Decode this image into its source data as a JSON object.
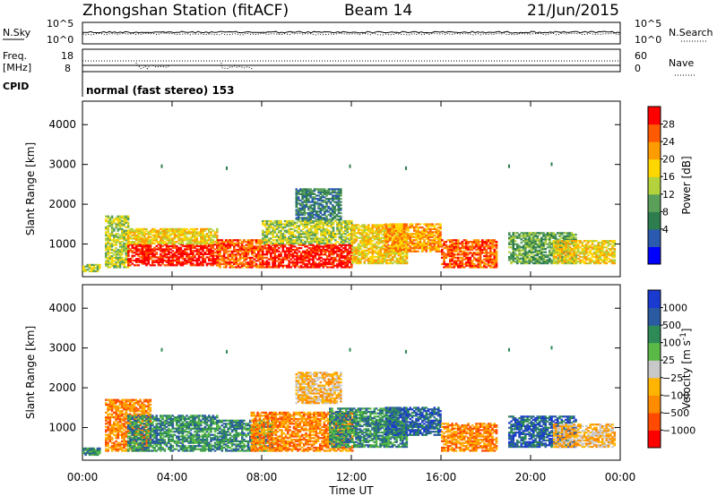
{
  "header": {
    "title": "Zhongshan Station (fitACF)",
    "beam": "Beam 14",
    "date": "21/Jun/2015"
  },
  "status_panels": {
    "nsky_label": "N.Sky",
    "nsky_ticks": [
      "10^5",
      "10^0"
    ],
    "nsearch_label": "N.Search",
    "nsearch_ticks": [
      "10^5",
      "10^0"
    ],
    "freq_label_1": "Freq.",
    "freq_label_2": "[MHz]",
    "freq_ticks": [
      "18",
      "8"
    ],
    "nave_label": "Nave",
    "nave_ticks": [
      "60",
      "0"
    ],
    "cpid_label": "CPID",
    "cpid_text": "normal (fast stereo) 153"
  },
  "chart_data": [
    {
      "type": "heatmap",
      "name": "power",
      "ylabel": "Slant Range [km]",
      "yticks": [
        "4000",
        "3000",
        "2000",
        "1000"
      ],
      "ylim": [
        180,
        4590
      ],
      "xlim_hours": [
        0,
        24
      ],
      "colorbar_label": "Power [dB]",
      "colorbar_ticks": [
        "28",
        "24",
        "20",
        "16",
        "12",
        "8",
        "4"
      ],
      "colorbar_colors": [
        "#0000ff",
        "#2a5ab0",
        "#2e7d4f",
        "#5aa05a",
        "#b4d23c",
        "#ffd700",
        "#ff9c00",
        "#ff5a00",
        "#ff0000"
      ],
      "echo_regions": [
        {
          "t0": 0.0,
          "t1": 0.8,
          "r0": 300,
          "r1": 500,
          "level": 4
        },
        {
          "t0": 1.0,
          "t1": 2.0,
          "r0": 400,
          "r1": 1700,
          "level": 4
        },
        {
          "t0": 2.0,
          "t1": 6.0,
          "r0": 450,
          "r1": 1000,
          "level": 8
        },
        {
          "t0": 2.0,
          "t1": 6.0,
          "r0": 1000,
          "r1": 1400,
          "level": 5
        },
        {
          "t0": 6.0,
          "t1": 8.0,
          "r0": 400,
          "r1": 1100,
          "level": 7
        },
        {
          "t0": 8.0,
          "t1": 12.0,
          "r0": 400,
          "r1": 1000,
          "level": 8
        },
        {
          "t0": 8.0,
          "t1": 12.0,
          "r0": 1000,
          "r1": 1600,
          "level": 4
        },
        {
          "t0": 9.5,
          "t1": 11.5,
          "r0": 1600,
          "r1": 2400,
          "level": 2
        },
        {
          "t0": 12.0,
          "t1": 14.5,
          "r0": 500,
          "r1": 1500,
          "level": 5
        },
        {
          "t0": 13.5,
          "t1": 16.0,
          "r0": 800,
          "r1": 1500,
          "level": 6
        },
        {
          "t0": 16.0,
          "t1": 18.5,
          "r0": 400,
          "r1": 1100,
          "level": 7
        },
        {
          "t0": 19.0,
          "t1": 22.0,
          "r0": 500,
          "r1": 1300,
          "level": 3
        },
        {
          "t0": 21.0,
          "t1": 23.7,
          "r0": 500,
          "r1": 1100,
          "level": 5
        }
      ]
    },
    {
      "type": "heatmap",
      "name": "velocity",
      "ylabel": "Slant Range [km]",
      "yticks": [
        "4000",
        "3000",
        "2000",
        "1000"
      ],
      "ylim": [
        180,
        4590
      ],
      "xlim_hours": [
        0,
        24
      ],
      "xlabel": "Time UT",
      "xticks": [
        "00:00",
        "04:00",
        "08:00",
        "12:00",
        "16:00",
        "20:00",
        "00:00"
      ],
      "colorbar_label": "Velocity [m s",
      "colorbar_label_exp": "-1",
      "colorbar_label_end": "]",
      "colorbar_ticks": [
        "1000",
        "500",
        "100",
        "25",
        "−25",
        "−100",
        "−500",
        "−1000"
      ],
      "colorbar_colors": [
        "#ff0000",
        "#ff4a00",
        "#ff8c00",
        "#ffb400",
        "#c8c8c8",
        "#5ab946",
        "#2e8b57",
        "#2a5aa0",
        "#1a3ad0"
      ],
      "echo_regions": [
        {
          "t0": 0.0,
          "t1": 0.8,
          "r0": 300,
          "r1": 500,
          "level": 6
        },
        {
          "t0": 1.0,
          "t1": 3.0,
          "r0": 400,
          "r1": 1700,
          "level": 2
        },
        {
          "t0": 2.0,
          "t1": 6.0,
          "r0": 400,
          "r1": 1300,
          "level": 6
        },
        {
          "t0": 6.0,
          "t1": 8.5,
          "r0": 400,
          "r1": 1200,
          "level": 6
        },
        {
          "t0": 7.5,
          "t1": 12.0,
          "r0": 400,
          "r1": 1400,
          "level": 2
        },
        {
          "t0": 9.5,
          "t1": 11.5,
          "r0": 1600,
          "r1": 2400,
          "level": 3
        },
        {
          "t0": 11.0,
          "t1": 14.5,
          "r0": 500,
          "r1": 1500,
          "level": 6
        },
        {
          "t0": 13.5,
          "t1": 16.0,
          "r0": 800,
          "r1": 1500,
          "level": 7
        },
        {
          "t0": 16.0,
          "t1": 18.5,
          "r0": 400,
          "r1": 1100,
          "level": 2
        },
        {
          "t0": 19.0,
          "t1": 22.0,
          "r0": 500,
          "r1": 1300,
          "level": 7
        },
        {
          "t0": 21.0,
          "t1": 23.7,
          "r0": 500,
          "r1": 1100,
          "level": 3
        }
      ]
    }
  ]
}
